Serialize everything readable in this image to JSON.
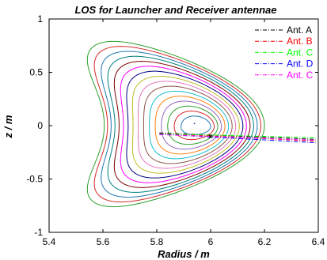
{
  "chart_data": {
    "type": "line",
    "title": "LOS for Launcher and Receiver antennae",
    "xlabel": "Radius / m",
    "ylabel": "z / m",
    "xlim": [
      5.4,
      6.4
    ],
    "ylim": [
      -1,
      1
    ],
    "xticks": [
      "5.4",
      "5.6",
      "5.8",
      "6",
      "6.2",
      "6.4"
    ],
    "yticks": [
      "-1",
      "-0.5",
      "0",
      "0.5",
      "1"
    ],
    "grid": false,
    "legend_position": "top-right",
    "flux_surfaces": {
      "magnetic_axis": [
        5.94,
        -0.01
      ],
      "colors": [
        "#1f77b4",
        "#d62728",
        "#2ca02c",
        "#9467bd",
        "#ff7f0e",
        "#17becf",
        "#8c564b",
        "#e377c2",
        "#bcbd22",
        "#000080",
        "#ff00ff",
        "#800000",
        "#008080",
        "#1f77b4",
        "#d62728",
        "#2ca02c"
      ],
      "innermost": {
        "r_min": 5.89,
        "r_max": 6.0,
        "z_max": 0.09
      },
      "outermost": {
        "r_min": 5.5,
        "r_max": 6.2,
        "z_max": 0.79,
        "z_min": -0.76
      }
    },
    "series": [
      {
        "name": "Ant. A",
        "color": "#000000",
        "x": [
          5.81,
          6.39
        ],
        "y": [
          -0.068,
          -0.128
        ]
      },
      {
        "name": "Ant. B",
        "color": "#ff0000",
        "x": [
          5.81,
          6.39
        ],
        "y": [
          -0.072,
          -0.145
        ]
      },
      {
        "name": "Ant. C",
        "color": "#00ff00",
        "x": [
          5.81,
          6.39
        ],
        "y": [
          -0.076,
          -0.112
        ]
      },
      {
        "name": "Ant. D",
        "color": "#0000ff",
        "x": [
          5.81,
          6.39
        ],
        "y": [
          -0.08,
          -0.16
        ]
      },
      {
        "name": "Ant. C",
        "color": "#ff00ff",
        "x": [
          5.81,
          6.39
        ],
        "y": [
          -0.084,
          -0.137
        ]
      }
    ]
  }
}
